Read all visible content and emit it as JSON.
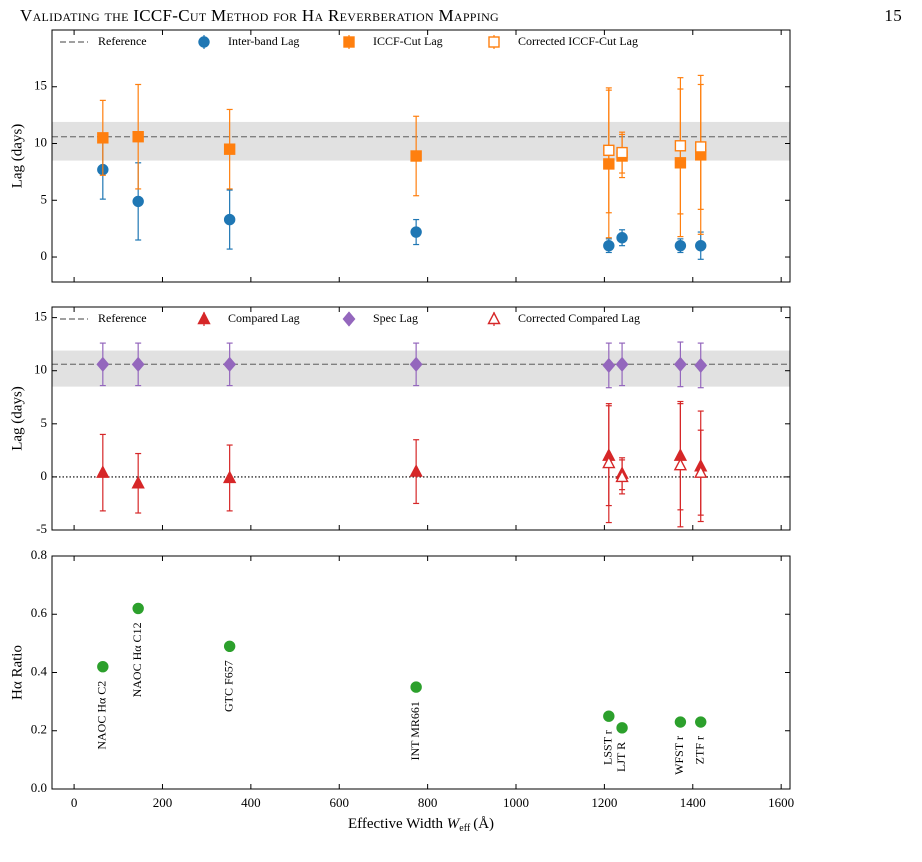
{
  "header": {
    "title": "Validating the ICCF-Cut Method for Hα Reverberation Mapping",
    "page": "15"
  },
  "chart_data": [
    {
      "type": "scatter",
      "ylabel": "Lag (days)",
      "xlim": [
        -50,
        1620
      ],
      "xticks": [
        0,
        200,
        400,
        600,
        800,
        1000,
        1200,
        1400,
        1600
      ],
      "ylim": [
        -2.2,
        20
      ],
      "yticks": [
        0,
        5,
        10,
        15
      ],
      "reference": 10.6,
      "reference_label": "Reference",
      "band": [
        8.5,
        11.9
      ],
      "series": [
        {
          "name": "Inter-band Lag",
          "color": "#1f77b4",
          "marker": "circle",
          "filled": true,
          "x": [
            65,
            145,
            352,
            774,
            1210,
            1240,
            1372,
            1418
          ],
          "values": [
            7.7,
            4.9,
            3.3,
            2.2,
            1.0,
            1.7,
            1.0,
            1.0
          ],
          "errors": [
            2.6,
            3.4,
            2.6,
            1.1,
            0.6,
            0.7,
            0.6,
            1.2
          ]
        },
        {
          "name": "ICCF-Cut Lag",
          "color": "#ff7f0e",
          "marker": "square",
          "filled": true,
          "x": [
            65,
            145,
            352,
            774,
            1210,
            1240,
            1372,
            1418
          ],
          "values": [
            10.5,
            10.6,
            9.5,
            8.9,
            8.2,
            8.9,
            8.3,
            9.0
          ],
          "errors": [
            3.3,
            4.6,
            3.5,
            3.5,
            6.5,
            1.9,
            6.5,
            7.0
          ]
        },
        {
          "name": "Corrected ICCF-Cut Lag",
          "color": "#ff7f0e",
          "marker": "square",
          "filled": false,
          "x": [
            1210,
            1240,
            1372,
            1418
          ],
          "values": [
            9.4,
            9.2,
            9.8,
            9.7
          ],
          "errors": [
            5.5,
            1.8,
            6.0,
            5.5
          ]
        }
      ]
    },
    {
      "type": "scatter",
      "ylabel": "Lag (days)",
      "xlim": [
        -50,
        1620
      ],
      "xticks": [
        0,
        200,
        400,
        600,
        800,
        1000,
        1200,
        1400,
        1600
      ],
      "ylim": [
        -5,
        16
      ],
      "yticks": [
        -5,
        0,
        5,
        10,
        15
      ],
      "reference": 10.6,
      "reference_label": "Reference",
      "band": [
        8.5,
        11.9
      ],
      "zero_line": 0,
      "series": [
        {
          "name": "Compared Lag",
          "color": "#d62728",
          "marker": "triangle",
          "filled": true,
          "x": [
            65,
            145,
            352,
            774,
            1210,
            1240,
            1372,
            1418
          ],
          "values": [
            0.4,
            -0.6,
            -0.1,
            0.5,
            2.0,
            0.3,
            2.0,
            1.0
          ],
          "errors": [
            3.6,
            2.8,
            3.1,
            3.0,
            4.7,
            1.5,
            5.1,
            5.2
          ]
        },
        {
          "name": "Spec Lag",
          "color": "#9467bd",
          "marker": "diamond",
          "filled": true,
          "x": [
            65,
            145,
            352,
            774,
            1210,
            1240,
            1372,
            1418
          ],
          "values": [
            10.6,
            10.6,
            10.6,
            10.6,
            10.5,
            10.6,
            10.6,
            10.5
          ],
          "errors": [
            2.0,
            2.0,
            2.0,
            2.0,
            2.1,
            2.0,
            2.1,
            2.1
          ]
        },
        {
          "name": "Corrected Compared Lag",
          "color": "#d62728",
          "marker": "triangle",
          "filled": false,
          "x": [
            1210,
            1240,
            1372,
            1418
          ],
          "values": [
            1.3,
            0.0,
            1.1,
            0.4
          ],
          "errors": [
            5.6,
            1.6,
            5.8,
            4.0
          ]
        }
      ]
    },
    {
      "type": "scatter",
      "ylabel": "Hα Ratio",
      "xlabel": "Effective Width",
      "xlabel_var": "W",
      "xlabel_sub": "eff",
      "xlabel_unit": "(Å)",
      "xlim": [
        -50,
        1620
      ],
      "xticks": [
        0,
        200,
        400,
        600,
        800,
        1000,
        1200,
        1400,
        1600
      ],
      "ylim": [
        0,
        0.8
      ],
      "yticks": [
        {
          "value": 0,
          "label": "0.0"
        },
        0.2,
        0.4,
        0.6,
        0.8
      ],
      "series": [
        {
          "color": "#2ca02c",
          "marker": "circle",
          "filled": true,
          "x": [
            65,
            145,
            352,
            774,
            1210,
            1240,
            1372,
            1418
          ],
          "values": [
            0.42,
            0.62,
            0.49,
            0.35,
            0.25,
            0.21,
            0.23,
            0.23
          ],
          "point_labels": [
            "NAOC Hα C2",
            "NAOC Hα C12",
            "GTC F657",
            "INT MR661",
            "LSST r",
            "LJT R",
            "WFST r",
            "ZTF r"
          ]
        }
      ]
    }
  ]
}
